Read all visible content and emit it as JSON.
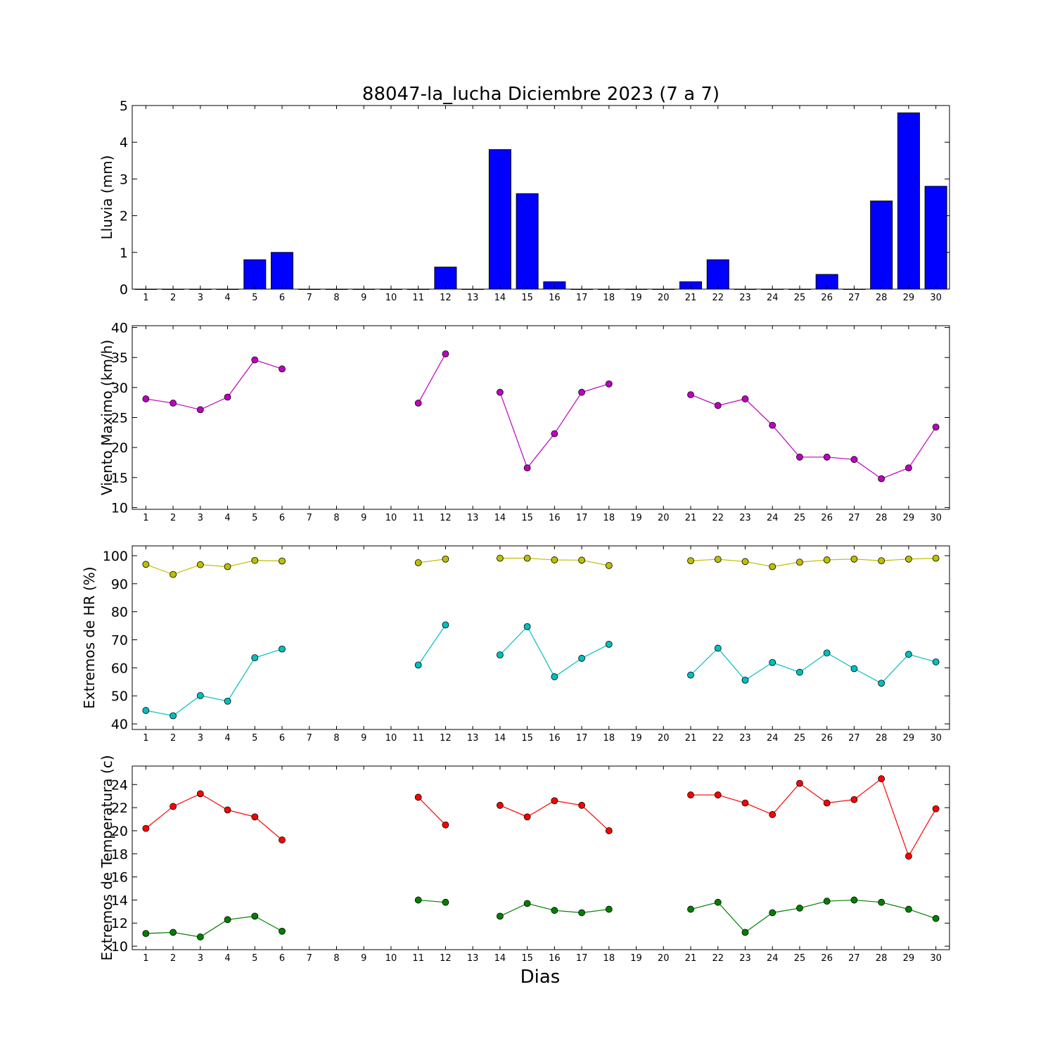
{
  "chart_data": {
    "title": "88047-la_lucha Diciembre 2023  (7 a 7)",
    "xlabel": "Dias",
    "days": [
      1,
      2,
      3,
      4,
      5,
      6,
      7,
      8,
      9,
      10,
      11,
      12,
      13,
      14,
      15,
      16,
      17,
      18,
      19,
      20,
      21,
      22,
      23,
      24,
      25,
      26,
      27,
      28,
      29,
      30
    ],
    "panels": [
      {
        "type": "bar",
        "ylabel": "Lluvia (mm)",
        "ylim": [
          0,
          5
        ],
        "yticks": [
          0,
          1,
          2,
          3,
          4,
          5
        ],
        "series": [
          {
            "color": "#0000ff",
            "values": [
              0,
              0,
              0,
              0,
              0.8,
              1.0,
              0,
              0,
              0,
              0,
              0,
              0.6,
              0,
              3.8,
              2.6,
              0.2,
              0,
              0,
              0,
              0,
              0.2,
              0.8,
              0,
              0,
              0,
              0.4,
              0,
              2.4,
              4.8,
              2.8
            ]
          }
        ]
      },
      {
        "type": "line",
        "ylabel": "Viento Maximo (km/h)",
        "ylim": [
          9.7,
          40.3
        ],
        "yticks": [
          10,
          15,
          20,
          25,
          30,
          35,
          40
        ],
        "series": [
          {
            "color": "#bf00bf",
            "values": [
              28.1,
              27.4,
              26.3,
              28.4,
              34.6,
              33.1,
              null,
              null,
              null,
              null,
              27.4,
              35.6,
              null,
              29.2,
              16.6,
              22.3,
              29.2,
              30.6,
              null,
              null,
              28.8,
              27.0,
              28.1,
              23.7,
              18.4,
              18.4,
              18.0,
              14.8,
              16.6,
              23.4
            ]
          }
        ]
      },
      {
        "type": "line",
        "ylabel": "Extremos de HR (%)",
        "ylim": [
          38,
          103.5
        ],
        "yticks": [
          40,
          50,
          60,
          70,
          80,
          90,
          100
        ],
        "series": [
          {
            "color": "#bfbf00",
            "values": [
              96.9,
              93.3,
              96.8,
              96.1,
              98.3,
              98.1,
              null,
              null,
              null,
              null,
              97.5,
              98.8,
              null,
              99.1,
              99.1,
              98.5,
              98.4,
              96.5,
              null,
              null,
              98.2,
              98.7,
              97.9,
              96.1,
              97.7,
              98.5,
              98.8,
              98.2,
              98.8,
              99.1
            ]
          },
          {
            "color": "#00bfbf",
            "values": [
              44.8,
              42.9,
              50.1,
              48.1,
              63.6,
              66.7,
              null,
              null,
              null,
              null,
              61.0,
              75.3,
              null,
              64.6,
              74.7,
              56.8,
              63.4,
              68.4,
              null,
              null,
              57.4,
              67.0,
              55.6,
              61.9,
              58.4,
              65.3,
              59.7,
              54.5,
              64.8,
              62.1
            ]
          }
        ]
      },
      {
        "type": "line",
        "ylabel": "Extremos de Temperatura (c)",
        "ylim": [
          9.7,
          25.6
        ],
        "yticks": [
          10,
          12,
          14,
          16,
          18,
          20,
          22,
          24
        ],
        "series": [
          {
            "color": "#ff0000",
            "values": [
              20.2,
              22.1,
              23.2,
              21.8,
              21.2,
              19.2,
              null,
              null,
              null,
              null,
              22.9,
              20.5,
              null,
              22.2,
              21.2,
              22.6,
              22.2,
              20.0,
              null,
              null,
              23.1,
              23.1,
              22.4,
              21.4,
              24.1,
              22.4,
              22.7,
              24.5,
              17.8,
              21.9
            ]
          },
          {
            "color": "#008000",
            "values": [
              11.1,
              11.2,
              10.8,
              12.3,
              12.6,
              11.3,
              null,
              null,
              null,
              null,
              14.0,
              13.8,
              null,
              12.6,
              13.7,
              13.1,
              12.9,
              13.2,
              null,
              null,
              13.2,
              13.8,
              11.2,
              12.9,
              13.3,
              13.9,
              14.0,
              13.8,
              13.2,
              12.4
            ]
          }
        ]
      }
    ]
  }
}
